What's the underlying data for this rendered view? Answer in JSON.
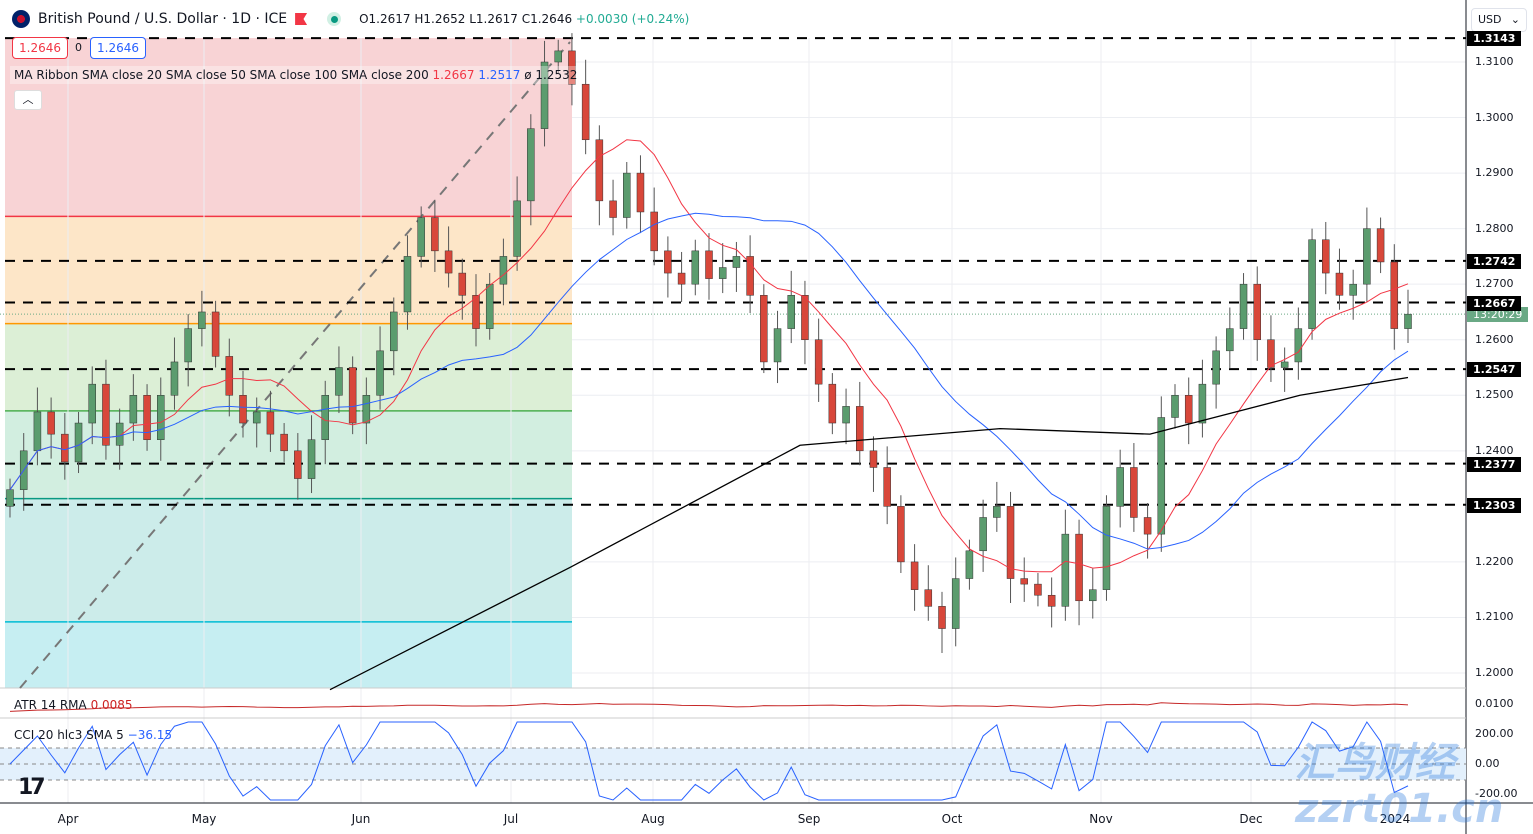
{
  "header": {
    "symbol": "British Pound / U.S. Dollar · 1D · ICE",
    "open": "O1.2617",
    "high": "H1.2652",
    "low": "L1.2617",
    "close": "C1.2646",
    "change": "+0.0030 (+0.24%)"
  },
  "trade": {
    "sell": "1.2646",
    "spread": "0",
    "buy": "1.2646"
  },
  "legend": {
    "label": "MA Ribbon SMA close 20 SMA close 50 SMA close 100 SMA close 200",
    "v1": "1.2667",
    "v2": "1.2517",
    "sep": "ø",
    "v3": "1.2532"
  },
  "collapse_icon": "chevron-up-icon",
  "currency": "USD",
  "countdown": "13:20:29",
  "atr": {
    "label": "ATR 14 RMA",
    "value": "0.0085"
  },
  "cci": {
    "label": "CCI 20 hlc3 SMA 5",
    "value": "−36.15"
  },
  "watermark": "汇鸟财经 zzrt01.cn",
  "colors": {
    "up": "#5b9c6e",
    "down": "#d8473a",
    "sma20": "#f23645",
    "sma50": "#2962ff",
    "sma200": "#000000",
    "countdown": "#6aa985"
  },
  "chart_data": {
    "type": "candlestick",
    "ylim": [
      1.1975,
      1.315
    ],
    "yticks": [
      "1.3100",
      "1.3000",
      "1.2900",
      "1.2800",
      "1.2700",
      "1.2600",
      "1.2500",
      "1.2400",
      "1.2200",
      "1.2100",
      "1.2000"
    ],
    "xticks": [
      "Apr",
      "May",
      "Jun",
      "Jul",
      "Aug",
      "Sep",
      "Oct",
      "Nov",
      "Dec",
      "2024"
    ],
    "levels": [
      "1.3143",
      "1.2742",
      "1.2667",
      "1.2547",
      "1.2377",
      "1.2303"
    ],
    "fib_levels": [
      1.3143,
      1.2822,
      1.2629,
      1.2472,
      1.2314,
      1.2092
    ],
    "closes": [
      1.233,
      1.24,
      1.247,
      1.243,
      1.238,
      1.245,
      1.252,
      1.241,
      1.245,
      1.25,
      1.242,
      1.25,
      1.256,
      1.262,
      1.265,
      1.257,
      1.25,
      1.245,
      1.247,
      1.243,
      1.24,
      1.235,
      1.242,
      1.25,
      1.255,
      1.245,
      1.25,
      1.258,
      1.265,
      1.275,
      1.282,
      1.276,
      1.272,
      1.268,
      1.262,
      1.27,
      1.275,
      1.285,
      1.298,
      1.31,
      1.312,
      1.306,
      1.296,
      1.285,
      1.282,
      1.29,
      1.283,
      1.276,
      1.272,
      1.27,
      1.276,
      1.271,
      1.273,
      1.275,
      1.268,
      1.256,
      1.262,
      1.268,
      1.26,
      1.252,
      1.245,
      1.248,
      1.24,
      1.237,
      1.23,
      1.22,
      1.215,
      1.212,
      1.208,
      1.217,
      1.222,
      1.228,
      1.23,
      1.217,
      1.216,
      1.214,
      1.212,
      1.225,
      1.213,
      1.215,
      1.23,
      1.237,
      1.228,
      1.225,
      1.246,
      1.25,
      1.245,
      1.252,
      1.258,
      1.262,
      1.27,
      1.26,
      1.255,
      1.256,
      1.262,
      1.278,
      1.272,
      1.268,
      1.27,
      1.28,
      1.274,
      1.262,
      1.2646
    ],
    "sma200": [
      1.197,
      1.219,
      1.241,
      1.244,
      1.243,
      1.25,
      1.2532
    ],
    "atr_axis": "0.0100",
    "cci_axis": [
      "200.00",
      "0.00",
      "-200.00"
    ]
  }
}
